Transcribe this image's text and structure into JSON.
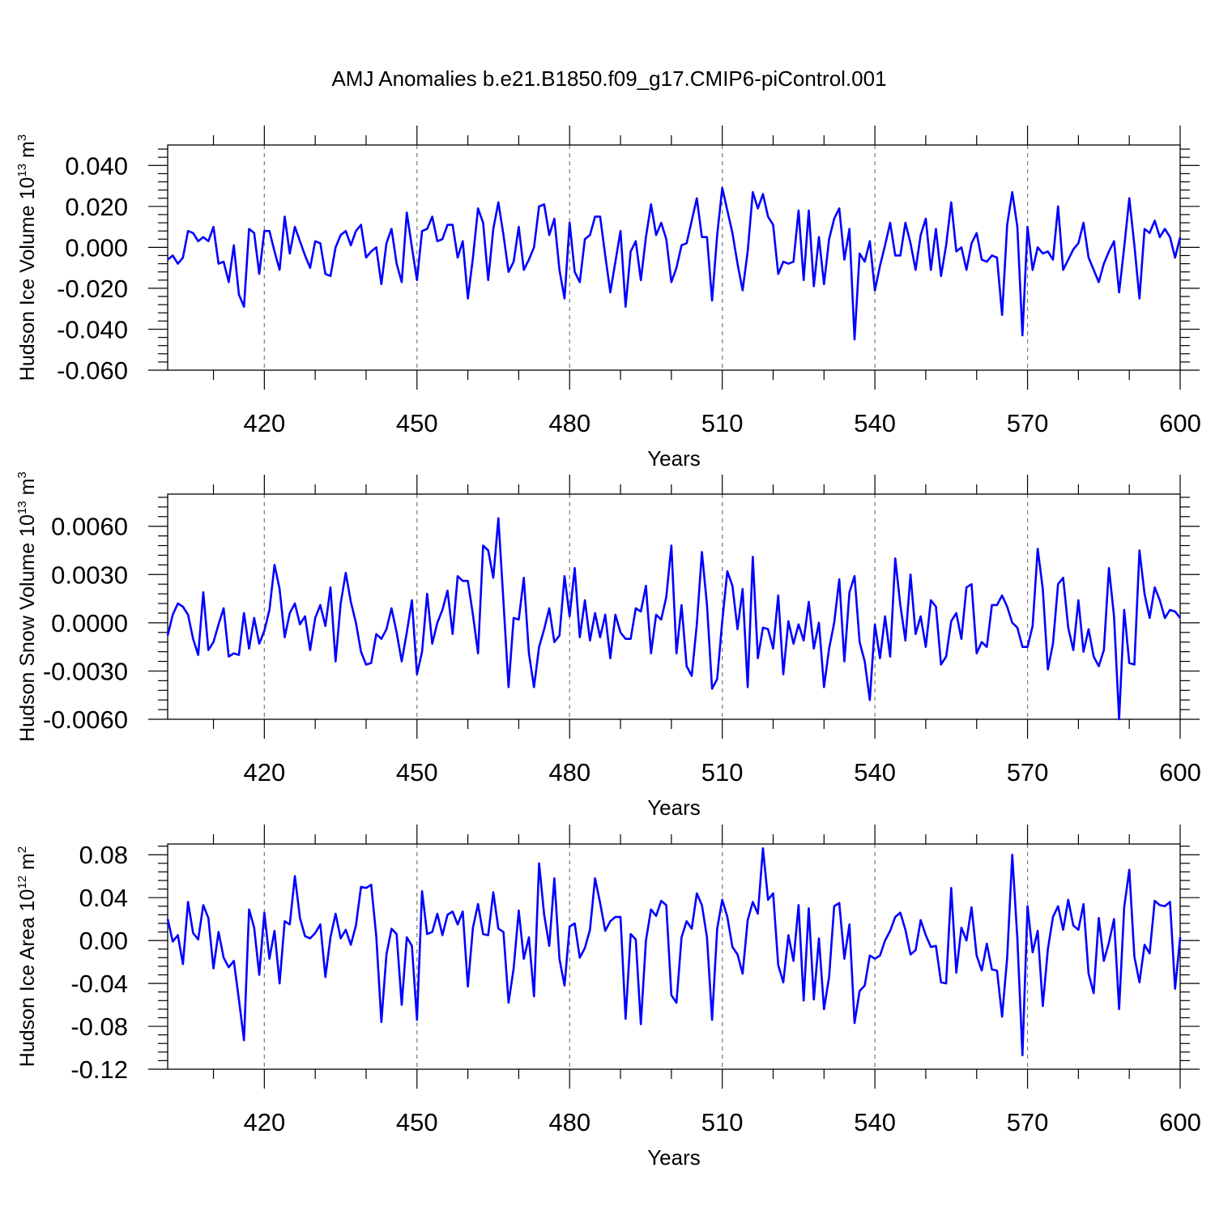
{
  "title": "AMJ Anomalies b.e21.B1850.f09_g17.CMIP6-piControl.001",
  "chart_data": [
    {
      "type": "line",
      "ylabel": "Hudson Ice Volume",
      "ylabel_unit_base": "10",
      "ylabel_unit_exp": "13",
      "ylabel_unit_suffix": " m",
      "ylabel_unit_suffix_exp": "3",
      "xlabel": "Years",
      "xlim": [
        401,
        600
      ],
      "ylim": [
        -0.06,
        0.05
      ],
      "xticks": [
        420,
        450,
        480,
        510,
        540,
        570,
        600
      ],
      "xtick_labels": [
        "420",
        "450",
        "480",
        "510",
        "540",
        "570",
        "600"
      ],
      "yticks": [
        0.04,
        0.02,
        0.0,
        -0.02,
        -0.04,
        -0.06
      ],
      "ytick_labels": [
        "0.040",
        "0.020",
        "0.000",
        "-0.020",
        "-0.040",
        "-0.060"
      ],
      "grid": "vertical dashed at x ticks",
      "color": "#0000ff",
      "series": [
        {
          "x_start": 401,
          "x_step": 1,
          "values": [
            -0.006,
            -0.004,
            -0.008,
            -0.005,
            0.008,
            0.007,
            0.003,
            0.005,
            0.003,
            0.01,
            -0.008,
            -0.007,
            -0.017,
            0.001,
            -0.023,
            -0.029,
            0.009,
            0.007,
            -0.013,
            0.008,
            0.008,
            -0.002,
            -0.011,
            0.015,
            -0.003,
            0.01,
            0.003,
            -0.004,
            -0.01,
            0.003,
            0.002,
            -0.013,
            -0.014,
            0.0,
            0.006,
            0.008,
            0.001,
            0.008,
            0.011,
            -0.005,
            -0.002,
            0.0,
            -0.018,
            0.002,
            0.009,
            -0.008,
            -0.017,
            0.017,
            0.0,
            -0.016,
            0.008,
            0.009,
            0.015,
            0.003,
            0.004,
            0.011,
            0.011,
            -0.005,
            0.003,
            -0.025,
            -0.005,
            0.019,
            0.012,
            -0.016,
            0.009,
            0.022,
            0.006,
            -0.012,
            -0.007,
            0.01,
            -0.011,
            -0.006,
            0.0,
            0.02,
            0.021,
            0.006,
            0.014,
            -0.011,
            -0.025,
            0.012,
            -0.012,
            -0.017,
            0.004,
            0.006,
            0.015,
            0.015,
            -0.004,
            -0.022,
            -0.007,
            0.008,
            -0.029,
            -0.002,
            0.003,
            -0.016,
            0.005,
            0.021,
            0.006,
            0.012,
            0.004,
            -0.017,
            -0.01,
            0.001,
            0.002,
            0.013,
            0.024,
            0.005,
            0.005,
            -0.026,
            0.006,
            0.029,
            0.018,
            0.007,
            -0.008,
            -0.021,
            -0.002,
            0.027,
            0.019,
            0.026,
            0.015,
            0.011,
            -0.013,
            -0.007,
            -0.008,
            -0.007,
            0.018,
            -0.016,
            0.018,
            -0.019,
            0.005,
            -0.018,
            0.004,
            0.014,
            0.019,
            -0.006,
            0.009,
            -0.045,
            -0.003,
            -0.007,
            0.003,
            -0.021,
            -0.009,
            0.001,
            0.012,
            -0.004,
            -0.004,
            0.012,
            0.002,
            -0.011,
            0.006,
            0.014,
            -0.011,
            0.009,
            -0.014,
            0.001,
            0.022,
            -0.002,
            0.0,
            -0.011,
            0.002,
            0.007,
            -0.006,
            -0.007,
            -0.004,
            -0.005,
            -0.033,
            0.011,
            0.027,
            0.01,
            -0.043,
            0.01,
            -0.011,
            0.0,
            -0.003,
            -0.002,
            -0.006,
            0.02,
            -0.011,
            -0.006,
            -0.001,
            0.002,
            0.012,
            -0.005,
            -0.011,
            -0.017,
            -0.008,
            -0.002,
            0.003,
            -0.022,
            0.0,
            0.024,
            0.001,
            -0.025,
            0.009,
            0.007,
            0.013,
            0.005,
            0.009,
            0.005,
            -0.005,
            0.005
          ]
        }
      ]
    },
    {
      "type": "line",
      "ylabel": "Hudson Snow Volume",
      "ylabel_unit_base": "10",
      "ylabel_unit_exp": "13",
      "ylabel_unit_suffix": " m",
      "ylabel_unit_suffix_exp": "3",
      "xlabel": "Years",
      "xlim": [
        401,
        600
      ],
      "ylim": [
        -0.006,
        0.008
      ],
      "xticks": [
        420,
        450,
        480,
        510,
        540,
        570,
        600
      ],
      "xtick_labels": [
        "420",
        "450",
        "480",
        "510",
        "540",
        "570",
        "600"
      ],
      "yticks": [
        0.006,
        0.003,
        0.0,
        -0.003,
        -0.006
      ],
      "ytick_labels": [
        "0.0060",
        "0.0030",
        "0.0000",
        "-0.0030",
        "-0.0060"
      ],
      "grid": "vertical dashed at x ticks",
      "color": "#0000ff",
      "series": [
        {
          "x_start": 401,
          "x_step": 1,
          "values": [
            -0.0008,
            0.0005,
            0.0012,
            0.001,
            0.0005,
            -0.001,
            -0.002,
            0.0019,
            -0.0017,
            -0.0012,
            -0.0001,
            0.0009,
            -0.0021,
            -0.0019,
            -0.002,
            0.0006,
            -0.0016,
            0.0003,
            -0.0013,
            -0.0005,
            0.0008,
            0.0036,
            0.0021,
            -0.0009,
            0.0006,
            0.0012,
            -0.0001,
            0.0004,
            -0.0017,
            0.0003,
            0.0011,
            -0.0002,
            0.0022,
            -0.0024,
            0.0012,
            0.0031,
            0.0013,
            0.0,
            -0.0018,
            -0.0026,
            -0.0025,
            -0.0007,
            -0.001,
            -0.0004,
            0.0009,
            -0.0006,
            -0.0024,
            -0.0006,
            0.0014,
            -0.0032,
            -0.0018,
            0.0018,
            -0.0013,
            0.0,
            0.0008,
            0.002,
            -0.0007,
            0.0029,
            0.0026,
            0.0026,
            0.0005,
            -0.0019,
            0.0048,
            0.0045,
            0.0028,
            0.0065,
            0.0013,
            -0.004,
            0.0003,
            0.0002,
            0.0028,
            -0.0019,
            -0.004,
            -0.0015,
            -0.0004,
            0.0009,
            -0.0012,
            -0.0008,
            0.0029,
            0.0004,
            0.0034,
            -0.0009,
            0.0014,
            -0.0011,
            0.0006,
            -0.0009,
            0.0005,
            -0.0022,
            0.0005,
            -0.0006,
            -0.001,
            -0.001,
            0.0009,
            0.0007,
            0.0023,
            -0.0019,
            0.0005,
            0.0002,
            0.0016,
            0.0048,
            -0.0019,
            0.0011,
            -0.0027,
            -0.0033,
            -0.0001,
            0.0044,
            0.0011,
            -0.0041,
            -0.0035,
            0.0001,
            0.0032,
            0.0023,
            -0.0004,
            0.0021,
            -0.004,
            0.0041,
            -0.0022,
            -0.0003,
            -0.0004,
            -0.0016,
            0.0017,
            -0.0032,
            0.0001,
            -0.0013,
            -0.0001,
            -0.0011,
            0.0013,
            -0.0016,
            0.0,
            -0.004,
            -0.0016,
            0.0,
            0.0027,
            -0.0024,
            0.0019,
            0.0029,
            -0.0012,
            -0.0024,
            -0.0048,
            -0.0001,
            -0.0022,
            0.0004,
            -0.0021,
            0.004,
            0.0011,
            -0.0011,
            0.003,
            -0.0007,
            0.0004,
            -0.0015,
            0.0014,
            0.001,
            -0.0026,
            -0.0021,
            0.0001,
            0.0006,
            -0.001,
            0.0022,
            0.0024,
            -0.0019,
            -0.0012,
            -0.0015,
            0.0011,
            0.0011,
            0.0017,
            0.001,
            0.0,
            -0.0003,
            -0.0015,
            -0.0015,
            -0.0002,
            0.0046,
            0.0021,
            -0.0029,
            -0.0013,
            0.0024,
            0.0028,
            -0.0003,
            -0.0017,
            0.0014,
            -0.0018,
            -0.0004,
            -0.0021,
            -0.0027,
            -0.0017,
            0.0034,
            0.0004,
            -0.006,
            0.0008,
            -0.0025,
            -0.0026,
            0.0045,
            0.0018,
            0.0003,
            0.0022,
            0.0014,
            0.0003,
            0.0008,
            0.0007,
            0.0003
          ]
        }
      ]
    },
    {
      "type": "line",
      "ylabel": "Hudson Ice Area",
      "ylabel_unit_base": "10",
      "ylabel_unit_exp": "12",
      "ylabel_unit_suffix": " m",
      "ylabel_unit_suffix_exp": "2",
      "xlabel": "Years",
      "xlim": [
        401,
        600
      ],
      "ylim": [
        -0.12,
        0.09
      ],
      "xticks": [
        420,
        450,
        480,
        510,
        540,
        570,
        600
      ],
      "xtick_labels": [
        "420",
        "450",
        "480",
        "510",
        "540",
        "570",
        "600"
      ],
      "yticks": [
        0.08,
        0.04,
        0.0,
        -0.04,
        -0.08,
        -0.12
      ],
      "ytick_labels": [
        "0.08",
        "0.04",
        "0.00",
        "-0.04",
        "-0.08",
        "-0.12"
      ],
      "grid": "vertical dashed at x ticks",
      "color": "#0000ff",
      "series": [
        {
          "x_start": 401,
          "x_step": 1,
          "values": [
            0.02,
            -0.001,
            0.005,
            -0.022,
            0.036,
            0.007,
            0.001,
            0.033,
            0.021,
            -0.026,
            0.008,
            -0.016,
            -0.025,
            -0.019,
            -0.055,
            -0.093,
            0.029,
            0.012,
            -0.032,
            0.026,
            -0.017,
            0.009,
            -0.04,
            0.018,
            0.015,
            0.06,
            0.021,
            0.004,
            0.002,
            0.007,
            0.015,
            -0.034,
            0.003,
            0.025,
            0.002,
            0.01,
            -0.004,
            0.014,
            0.05,
            0.049,
            0.052,
            0.004,
            -0.076,
            -0.013,
            0.011,
            0.006,
            -0.06,
            0.003,
            -0.005,
            -0.074,
            0.046,
            0.006,
            0.008,
            0.025,
            0.005,
            0.024,
            0.027,
            0.015,
            0.027,
            -0.043,
            0.012,
            0.034,
            0.006,
            0.005,
            0.045,
            0.011,
            0.008,
            -0.058,
            -0.026,
            0.028,
            -0.017,
            0.003,
            -0.052,
            0.072,
            0.024,
            -0.005,
            0.058,
            -0.017,
            -0.042,
            0.013,
            0.016,
            -0.016,
            -0.007,
            0.01,
            0.058,
            0.035,
            0.009,
            0.018,
            0.022,
            0.022,
            -0.073,
            0.006,
            0.001,
            -0.078,
            0.0,
            0.029,
            0.023,
            0.037,
            0.033,
            -0.051,
            -0.058,
            0.003,
            0.018,
            0.011,
            0.044,
            0.033,
            0.003,
            -0.074,
            0.011,
            0.038,
            0.022,
            -0.006,
            -0.013,
            -0.031,
            0.019,
            0.036,
            0.025,
            0.086,
            0.038,
            0.044,
            -0.023,
            -0.039,
            0.005,
            -0.019,
            0.033,
            -0.056,
            0.03,
            -0.055,
            0.002,
            -0.064,
            -0.034,
            0.032,
            0.035,
            -0.017,
            0.015,
            -0.077,
            -0.047,
            -0.042,
            -0.014,
            -0.017,
            -0.014,
            0.0,
            0.009,
            0.022,
            0.026,
            0.01,
            -0.013,
            -0.009,
            0.019,
            0.005,
            -0.006,
            -0.005,
            -0.039,
            -0.04,
            0.049,
            -0.03,
            0.012,
            0.0,
            0.031,
            -0.014,
            -0.028,
            -0.003,
            -0.027,
            -0.028,
            -0.071,
            -0.016,
            0.08,
            0.002,
            -0.107,
            0.032,
            -0.011,
            0.009,
            -0.061,
            -0.008,
            0.022,
            0.032,
            0.01,
            0.038,
            0.014,
            0.01,
            0.034,
            -0.031,
            -0.049,
            0.021,
            -0.019,
            -0.002,
            0.02,
            -0.064,
            0.031,
            0.066,
            -0.015,
            -0.039,
            -0.004,
            -0.012,
            0.037,
            0.033,
            0.032,
            0.036,
            -0.045,
            0.003
          ]
        }
      ]
    }
  ]
}
